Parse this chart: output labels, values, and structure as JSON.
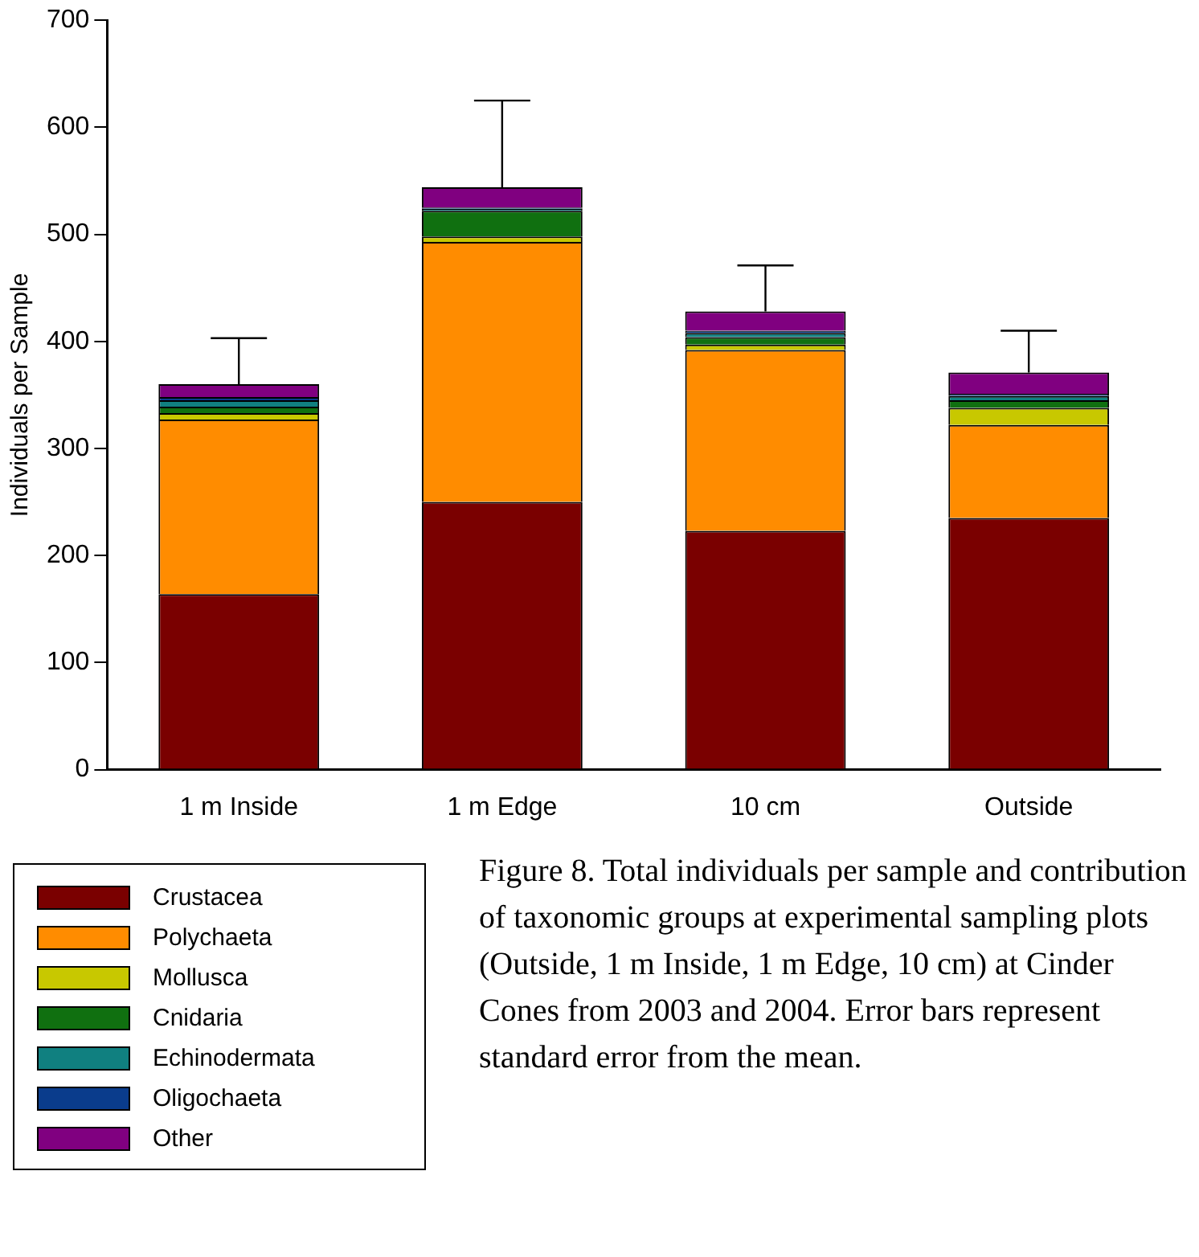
{
  "chart_data": {
    "type": "bar",
    "stacked": true,
    "ylabel": "Individuals per Sample",
    "categories": [
      "1 m Inside",
      "1 m Edge",
      "10 cm",
      "Outside"
    ],
    "series": [
      {
        "name": "Crustacea",
        "color": "#7a0000",
        "values": [
          164,
          250,
          223,
          235
        ]
      },
      {
        "name": "Polychaeta",
        "color": "#ff8c00",
        "values": [
          163,
          243,
          169,
          87
        ]
      },
      {
        "name": "Mollusca",
        "color": "#c8c800",
        "values": [
          6,
          5,
          5,
          16
        ]
      },
      {
        "name": "Cnidaria",
        "color": "#107010",
        "values": [
          6,
          24,
          7,
          7
        ]
      },
      {
        "name": "Echinodermata",
        "color": "#108080",
        "values": [
          6,
          2,
          4,
          4
        ]
      },
      {
        "name": "Oligochaeta",
        "color": "#0a3c8c",
        "values": [
          3,
          1,
          2,
          2
        ]
      },
      {
        "name": "Other",
        "color": "#800080",
        "values": [
          12,
          19,
          18,
          20
        ],
        "errors": [
          [
            360,
            403
          ],
          [
            544,
            625
          ],
          [
            428,
            471
          ],
          [
            371,
            410
          ]
        ]
      }
    ],
    "ylim": [
      0,
      700
    ],
    "yticks": [
      0,
      100,
      200,
      300,
      400,
      500,
      600,
      700
    ],
    "grid": false,
    "legend": "bottom left",
    "annotations": [
      "Figure 8. Total individuals per sample and contribution of taxonomic groups at experimental sampling plots (Outside, 1 m Inside, 1 m Edge, 10 cm) at Cinder Cones from 2003 and 2004. Error bars represent standard error from the mean."
    ]
  }
}
